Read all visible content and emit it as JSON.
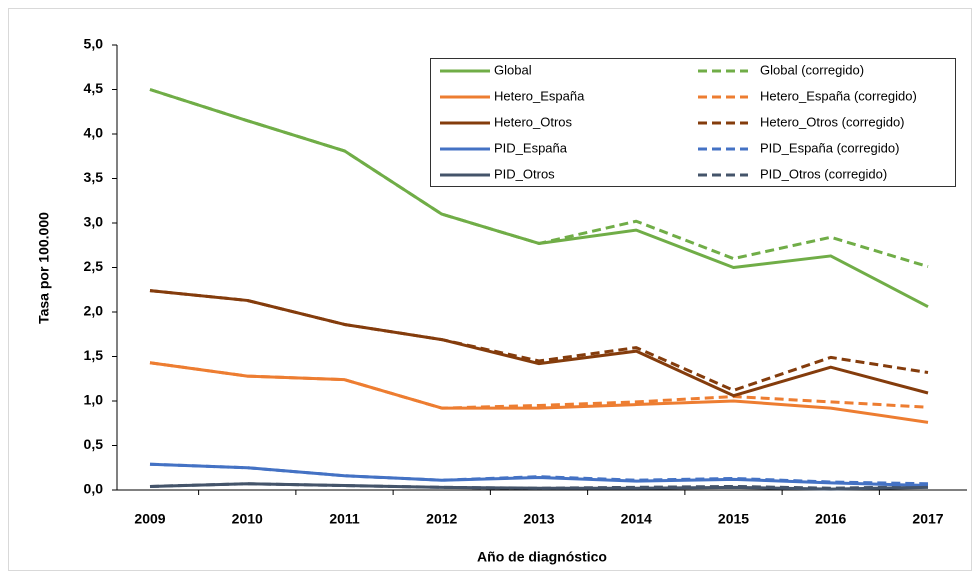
{
  "chart_data": {
    "type": "line",
    "categories": [
      "2009",
      "2010",
      "2011",
      "2012",
      "2013",
      "2014",
      "2015",
      "2016",
      "2017"
    ],
    "x_label": "Año de diagnóstico",
    "y_label": "Tasa por 100.000",
    "ylim": [
      0,
      5
    ],
    "yticks": [
      {
        "value": 0,
        "label": "0,0"
      },
      {
        "value": 0.5,
        "label": "0,5"
      },
      {
        "value": 1,
        "label": "1,0"
      },
      {
        "value": 1.5,
        "label": "1,5"
      },
      {
        "value": 2,
        "label": "2,0"
      },
      {
        "value": 2.5,
        "label": "2,5"
      },
      {
        "value": 3,
        "label": "3,0"
      },
      {
        "value": 3.5,
        "label": "3,5"
      },
      {
        "value": 4,
        "label": "4,0"
      },
      {
        "value": 4.5,
        "label": "4,5"
      },
      {
        "value": 5,
        "label": "5,0"
      }
    ],
    "legend": "upper-right",
    "series": [
      {
        "name": "Global",
        "color": "#70ad47",
        "style": "solid",
        "values": [
          4.5,
          4.15,
          3.81,
          3.1,
          2.77,
          2.92,
          2.5,
          2.63,
          2.06
        ]
      },
      {
        "name": "Global (corregido)",
        "color": "#70ad47",
        "style": "dashed",
        "values": [
          4.5,
          4.15,
          3.81,
          3.1,
          2.77,
          3.02,
          2.6,
          2.84,
          2.51
        ]
      },
      {
        "name": "Hetero_España",
        "color": "#ed7d31",
        "style": "solid",
        "values": [
          1.43,
          1.28,
          1.24,
          0.92,
          0.92,
          0.96,
          1.0,
          0.92,
          0.76
        ]
      },
      {
        "name": "Hetero_España (corregido)",
        "color": "#ed7d31",
        "style": "dashed",
        "values": [
          1.43,
          1.28,
          1.24,
          0.92,
          0.95,
          0.99,
          1.05,
          0.99,
          0.93
        ]
      },
      {
        "name": "Hetero_Otros",
        "color": "#843c0c",
        "style": "solid",
        "values": [
          2.24,
          2.13,
          1.86,
          1.69,
          1.42,
          1.56,
          1.06,
          1.38,
          1.09
        ]
      },
      {
        "name": "Hetero_Otros (corregido)",
        "color": "#843c0c",
        "style": "dashed",
        "values": [
          2.24,
          2.13,
          1.86,
          1.69,
          1.45,
          1.6,
          1.12,
          1.49,
          1.32
        ]
      },
      {
        "name": "PID_España",
        "color": "#4472c4",
        "style": "solid",
        "values": [
          0.29,
          0.25,
          0.16,
          0.11,
          0.14,
          0.1,
          0.12,
          0.08,
          0.05
        ]
      },
      {
        "name": "PID_España (corregido)",
        "color": "#4472c4",
        "style": "dashed",
        "values": [
          0.29,
          0.25,
          0.16,
          0.11,
          0.15,
          0.11,
          0.13,
          0.09,
          0.07
        ]
      },
      {
        "name": "PID_Otros",
        "color": "#44546a",
        "style": "solid",
        "values": [
          0.04,
          0.07,
          0.05,
          0.03,
          0.02,
          0.02,
          0.03,
          0.01,
          0.03
        ]
      },
      {
        "name": "PID_Otros (corregido)",
        "color": "#44546a",
        "style": "dashed",
        "values": [
          0.04,
          0.07,
          0.05,
          0.03,
          0.02,
          0.03,
          0.04,
          0.02,
          0.04
        ]
      }
    ]
  }
}
